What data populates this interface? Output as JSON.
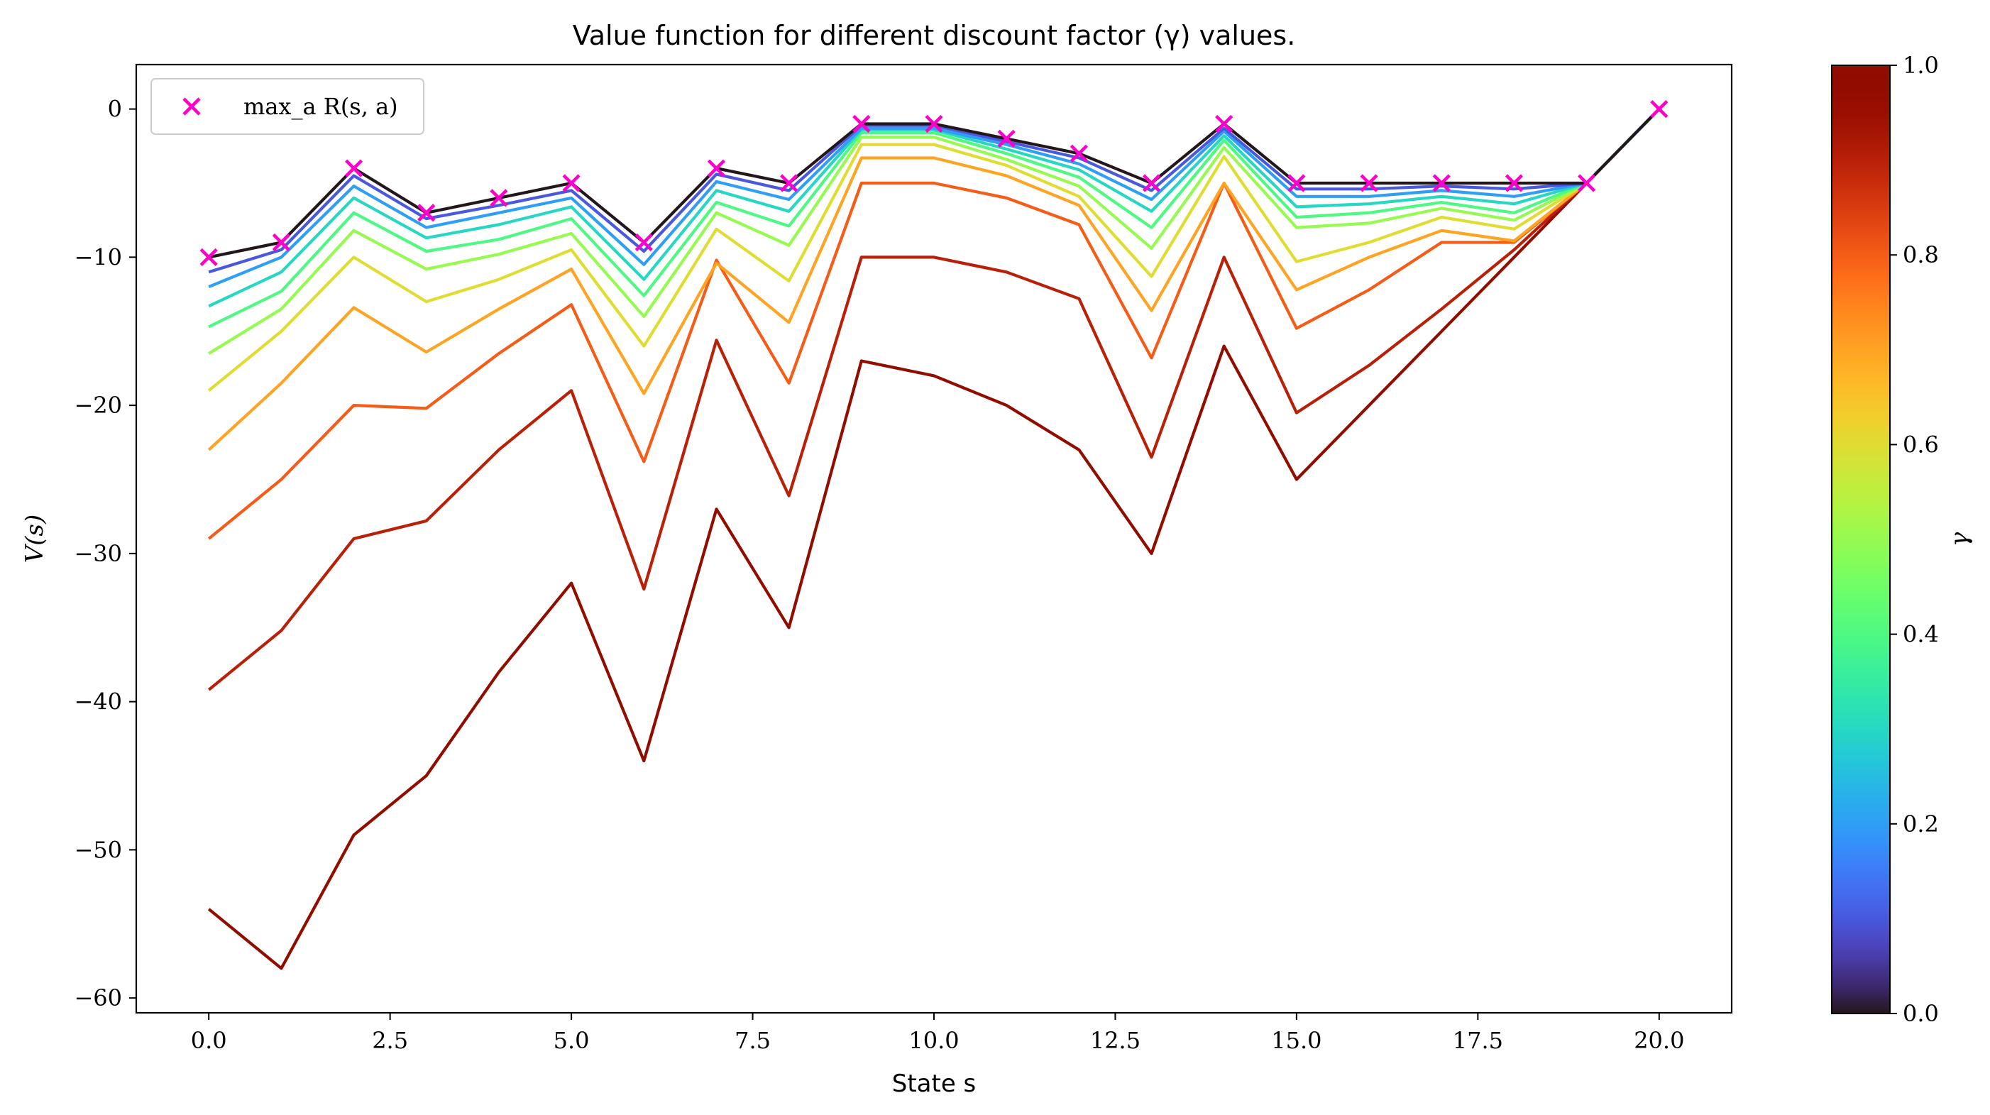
{
  "chart_data": {
    "type": "line",
    "title": "Value function for different discount factor (γ) values.",
    "xlabel": "State s",
    "ylabel": "V(s)",
    "xlim": [
      -1.0,
      21.0
    ],
    "ylim": [
      -61.0,
      3.0
    ],
    "grid": false,
    "legend_position": "top-left",
    "x_ticks": [
      0.0,
      2.5,
      5.0,
      7.5,
      10.0,
      12.5,
      15.0,
      17.5,
      20.0
    ],
    "x_tick_labels": [
      "0.0",
      "2.5",
      "5.0",
      "7.5",
      "10.0",
      "12.5",
      "15.0",
      "17.5",
      "20.0"
    ],
    "y_ticks": [
      0,
      -10,
      -20,
      -30,
      -40,
      -50,
      -60
    ],
    "y_tick_labels": [
      "0",
      "−10",
      "−20",
      "−30",
      "−40",
      "−50",
      "−60"
    ],
    "x": [
      0,
      1,
      2,
      3,
      4,
      5,
      6,
      7,
      8,
      9,
      10,
      11,
      12,
      13,
      14,
      15,
      16,
      17,
      18,
      19,
      20
    ],
    "series": [
      {
        "gamma": 0.0,
        "values": [
          -10,
          -9,
          -4,
          -7,
          -6,
          -5,
          -9,
          -4,
          -5,
          -1,
          -1,
          -2,
          -3,
          -5,
          -1,
          -5,
          -5,
          -5,
          -5,
          -5,
          0
        ]
      },
      {
        "gamma": 0.1,
        "values": [
          -11,
          -9.5,
          -4.5,
          -7.4,
          -6.5,
          -5.5,
          -9.6,
          -4.4,
          -5.5,
          -1.1,
          -1.1,
          -2.2,
          -3.3,
          -5.5,
          -1.3,
          -5.4,
          -5.4,
          -5.2,
          -5.4,
          -5,
          0
        ]
      },
      {
        "gamma": 0.2,
        "values": [
          -12,
          -10,
          -5.2,
          -8,
          -7,
          -6,
          -10.5,
          -4.9,
          -6.1,
          -1.3,
          -1.3,
          -2.4,
          -3.7,
          -6.1,
          -1.5,
          -5.9,
          -5.9,
          -5.5,
          -5.9,
          -5,
          0
        ]
      },
      {
        "gamma": 0.3,
        "values": [
          -13.3,
          -11,
          -6,
          -8.7,
          -7.8,
          -6.6,
          -11.5,
          -5.5,
          -6.9,
          -1.4,
          -1.4,
          -2.7,
          -4.1,
          -6.9,
          -1.8,
          -6.6,
          -6.4,
          -5.9,
          -6.4,
          -5,
          0
        ]
      },
      {
        "gamma": 0.4,
        "values": [
          -14.7,
          -12.3,
          -7,
          -9.6,
          -8.8,
          -7.4,
          -12.6,
          -6.3,
          -7.9,
          -1.6,
          -1.6,
          -3,
          -4.6,
          -8,
          -2.1,
          -7.3,
          -7,
          -6.3,
          -7,
          -5,
          0
        ]
      },
      {
        "gamma": 0.5,
        "values": [
          -16.5,
          -13.5,
          -8.2,
          -10.8,
          -9.8,
          -8.4,
          -14,
          -7,
          -9.2,
          -1.9,
          -1.9,
          -3.4,
          -5.2,
          -9.4,
          -2.6,
          -8,
          -7.7,
          -6.7,
          -7.5,
          -5,
          0
        ]
      },
      {
        "gamma": 0.6,
        "values": [
          -19,
          -15,
          -10,
          -13,
          -11.5,
          -9.5,
          -16,
          -8.1,
          -11.6,
          -2.4,
          -2.4,
          -3.8,
          -5.9,
          -11.3,
          -3.2,
          -10.3,
          -9,
          -7.3,
          -8.1,
          -5,
          0
        ]
      },
      {
        "gamma": 0.7,
        "values": [
          -23,
          -18.5,
          -13.4,
          -16.4,
          -13.5,
          -10.8,
          -19.2,
          -10.4,
          -14.4,
          -3.3,
          -3.3,
          -4.5,
          -6.5,
          -13.6,
          -5,
          -12.2,
          -10,
          -8.2,
          -8.9,
          -5,
          0
        ]
      },
      {
        "gamma": 0.8,
        "values": [
          -29,
          -25,
          -20,
          -20.2,
          -16.5,
          -13.2,
          -23.8,
          -10.2,
          -18.5,
          -5,
          -5,
          -6,
          -7.8,
          -16.8,
          -5,
          -14.8,
          -12.2,
          -9,
          -9,
          -5,
          0
        ]
      },
      {
        "gamma": 0.9,
        "values": [
          -39.2,
          -35.2,
          -29,
          -27.8,
          -23,
          -19,
          -32.4,
          -15.6,
          -26.1,
          -10,
          -10,
          -11,
          -12.8,
          -23.5,
          -10,
          -20.5,
          -17.3,
          -13.5,
          -9.5,
          -5,
          0
        ]
      },
      {
        "gamma": 1.0,
        "values": [
          -54,
          -58,
          -49,
          -45,
          -38,
          -32,
          -44,
          -27,
          -35,
          -17,
          -18,
          -20,
          -23,
          -30,
          -16,
          -25,
          -20,
          -15,
          -10,
          -5,
          0
        ]
      }
    ],
    "markers": {
      "label": "max_a R(s, a)",
      "color": "#ff00cc",
      "x": [
        0,
        1,
        2,
        3,
        4,
        5,
        6,
        7,
        8,
        9,
        10,
        11,
        12,
        13,
        14,
        15,
        16,
        17,
        18,
        19,
        20
      ],
      "y": [
        -10,
        -9,
        -4,
        -7,
        -6,
        -5,
        -9,
        -4,
        -5,
        -1,
        -1,
        -2,
        -3,
        -5,
        -1,
        -5,
        -5,
        -5,
        -5,
        -5,
        0
      ]
    },
    "colorbar": {
      "label": "γ",
      "colormap": "turbo",
      "range": [
        0.0,
        1.0
      ],
      "ticks": [
        0.0,
        0.2,
        0.4,
        0.6,
        0.8,
        1.0
      ],
      "tick_labels": [
        "0.0",
        "0.2",
        "0.4",
        "0.6",
        "0.8",
        "1.0"
      ]
    }
  }
}
